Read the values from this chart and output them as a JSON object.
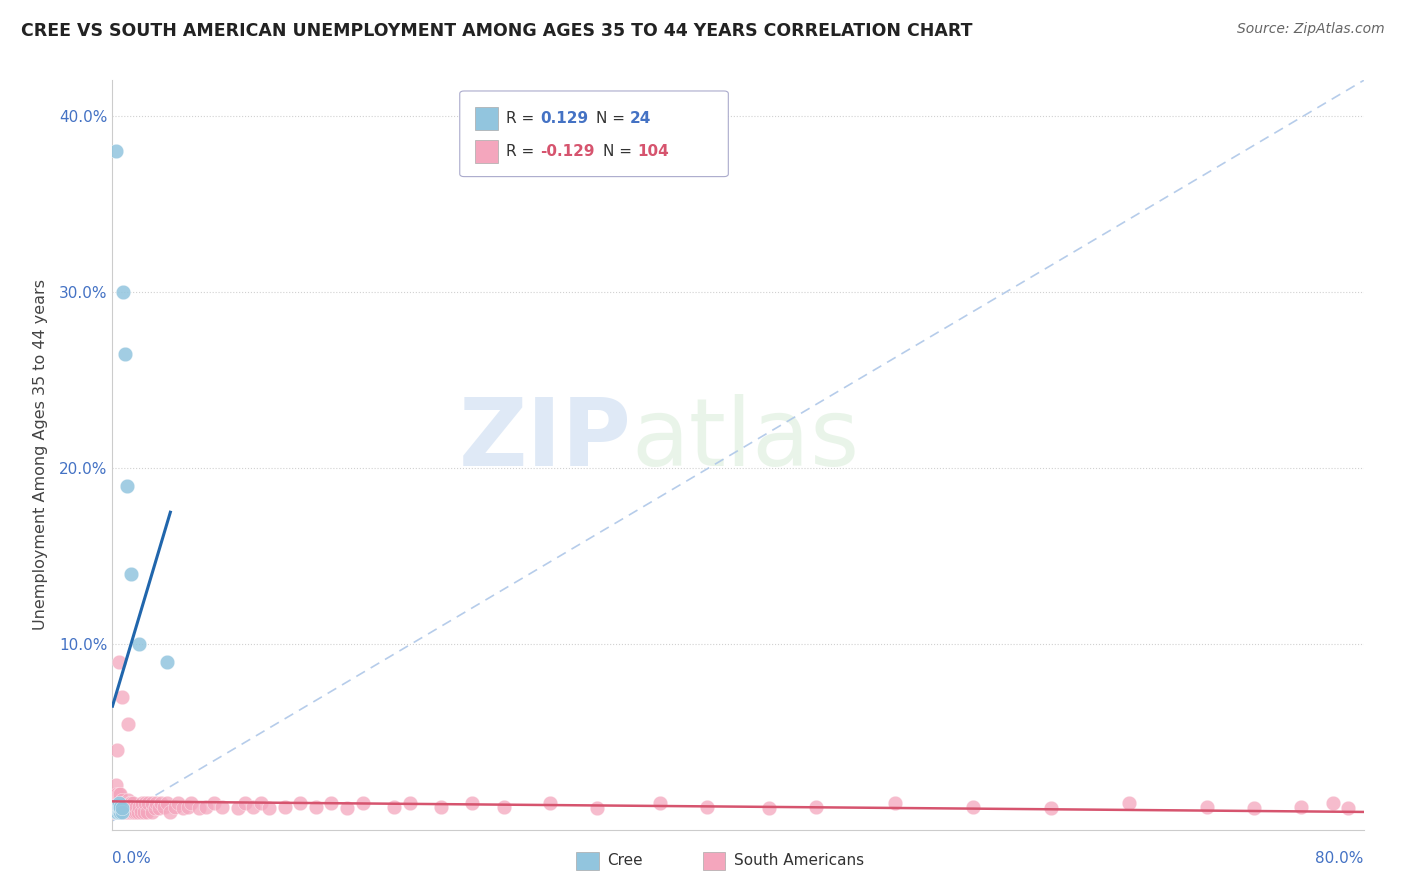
{
  "title": "CREE VS SOUTH AMERICAN UNEMPLOYMENT AMONG AGES 35 TO 44 YEARS CORRELATION CHART",
  "source": "Source: ZipAtlas.com",
  "ylabel": "Unemployment Among Ages 35 to 44 years",
  "xlim": [
    0.0,
    0.8
  ],
  "ylim": [
    -0.005,
    0.42
  ],
  "ytick_vals": [
    0.1,
    0.2,
    0.3,
    0.4
  ],
  "ytick_labels": [
    "10.0%",
    "20.0%",
    "30.0%",
    "40.0%"
  ],
  "cree_color": "#92c5de",
  "sa_color": "#f4a6bd",
  "trend_cree_color": "#2166ac",
  "trend_sa_color": "#d6546e",
  "trend_dash_color": "#aec7e8",
  "watermark_zip": "ZIP",
  "watermark_atlas": "atlas",
  "cree_x": [
    0.002,
    0.002,
    0.003,
    0.003,
    0.003,
    0.003,
    0.003,
    0.004,
    0.004,
    0.004,
    0.004,
    0.004,
    0.004,
    0.005,
    0.005,
    0.005,
    0.006,
    0.006,
    0.007,
    0.008,
    0.009,
    0.012,
    0.017,
    0.035
  ],
  "cree_y": [
    0.38,
    0.005,
    0.005,
    0.007,
    0.008,
    0.008,
    0.009,
    0.005,
    0.006,
    0.007,
    0.008,
    0.009,
    0.01,
    0.005,
    0.007,
    0.008,
    0.005,
    0.007,
    0.3,
    0.265,
    0.19,
    0.14,
    0.1,
    0.09
  ],
  "sa_x": [
    0.001,
    0.001,
    0.001,
    0.002,
    0.002,
    0.002,
    0.002,
    0.002,
    0.003,
    0.003,
    0.003,
    0.003,
    0.004,
    0.004,
    0.004,
    0.004,
    0.004,
    0.005,
    0.005,
    0.005,
    0.005,
    0.006,
    0.006,
    0.006,
    0.007,
    0.007,
    0.007,
    0.008,
    0.008,
    0.009,
    0.009,
    0.01,
    0.01,
    0.01,
    0.011,
    0.011,
    0.012,
    0.012,
    0.013,
    0.013,
    0.014,
    0.015,
    0.015,
    0.016,
    0.017,
    0.018,
    0.019,
    0.02,
    0.021,
    0.022,
    0.023,
    0.025,
    0.025,
    0.027,
    0.028,
    0.03,
    0.031,
    0.033,
    0.035,
    0.037,
    0.04,
    0.042,
    0.045,
    0.048,
    0.05,
    0.055,
    0.06,
    0.065,
    0.07,
    0.08,
    0.085,
    0.09,
    0.095,
    0.1,
    0.11,
    0.12,
    0.13,
    0.14,
    0.15,
    0.16,
    0.18,
    0.19,
    0.21,
    0.23,
    0.25,
    0.28,
    0.31,
    0.35,
    0.38,
    0.42,
    0.45,
    0.5,
    0.55,
    0.6,
    0.65,
    0.7,
    0.73,
    0.76,
    0.78,
    0.79,
    0.003,
    0.004,
    0.006,
    0.01
  ],
  "sa_y": [
    0.005,
    0.007,
    0.01,
    0.005,
    0.007,
    0.01,
    0.015,
    0.02,
    0.005,
    0.007,
    0.01,
    0.015,
    0.005,
    0.007,
    0.01,
    0.012,
    0.015,
    0.005,
    0.007,
    0.01,
    0.015,
    0.005,
    0.008,
    0.012,
    0.005,
    0.008,
    0.01,
    0.005,
    0.01,
    0.005,
    0.008,
    0.005,
    0.008,
    0.012,
    0.005,
    0.01,
    0.005,
    0.01,
    0.005,
    0.01,
    0.005,
    0.005,
    0.008,
    0.005,
    0.008,
    0.005,
    0.01,
    0.005,
    0.01,
    0.005,
    0.01,
    0.005,
    0.01,
    0.007,
    0.01,
    0.007,
    0.01,
    0.008,
    0.01,
    0.005,
    0.008,
    0.01,
    0.007,
    0.008,
    0.01,
    0.007,
    0.008,
    0.01,
    0.008,
    0.007,
    0.01,
    0.008,
    0.01,
    0.007,
    0.008,
    0.01,
    0.008,
    0.01,
    0.007,
    0.01,
    0.008,
    0.01,
    0.008,
    0.01,
    0.008,
    0.01,
    0.007,
    0.01,
    0.008,
    0.007,
    0.008,
    0.01,
    0.008,
    0.007,
    0.01,
    0.008,
    0.007,
    0.008,
    0.01,
    0.007,
    0.04,
    0.09,
    0.07,
    0.055
  ],
  "cree_trend_x0": 0.0,
  "cree_trend_x1": 0.037,
  "cree_trend_y0": 0.065,
  "cree_trend_y1": 0.175,
  "sa_trend_x0": 0.0,
  "sa_trend_x1": 0.8,
  "sa_trend_y0": 0.011,
  "sa_trend_y1": 0.005
}
